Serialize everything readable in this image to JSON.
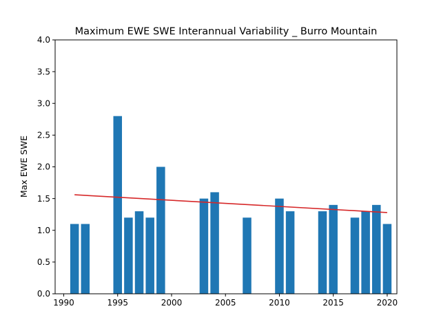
{
  "chart_data": {
    "type": "bar",
    "title": "Maximum EWE SWE Interannual Variability _ Burro Mountain",
    "xlabel": "",
    "ylabel": "Max EWE SWE",
    "xlim": [
      1989.2,
      2020.9
    ],
    "ylim": [
      0,
      4
    ],
    "x_ticks": [
      "1990",
      "1995",
      "2000",
      "2005",
      "2010",
      "2015",
      "2020"
    ],
    "y_ticks": [
      "0.0",
      "0.5",
      "1.0",
      "1.5",
      "2.0",
      "2.5",
      "3.0",
      "3.5",
      "4.0"
    ],
    "grid": false,
    "bar_color": "#1f77b4",
    "trend_color": "#d62728",
    "x": [
      1991,
      1992,
      1995,
      1996,
      1997,
      1998,
      1999,
      2003,
      2004,
      2007,
      2010,
      2011,
      2014,
      2015,
      2017,
      2018,
      2019,
      2020
    ],
    "values": [
      1.1,
      1.1,
      2.8,
      1.2,
      1.3,
      1.2,
      2.0,
      1.5,
      1.6,
      1.2,
      1.5,
      1.3,
      1.3,
      1.4,
      1.2,
      1.3,
      1.4,
      1.1
    ],
    "trend_line": {
      "x": [
        1991,
        2020
      ],
      "y": [
        1.56,
        1.28
      ]
    }
  }
}
